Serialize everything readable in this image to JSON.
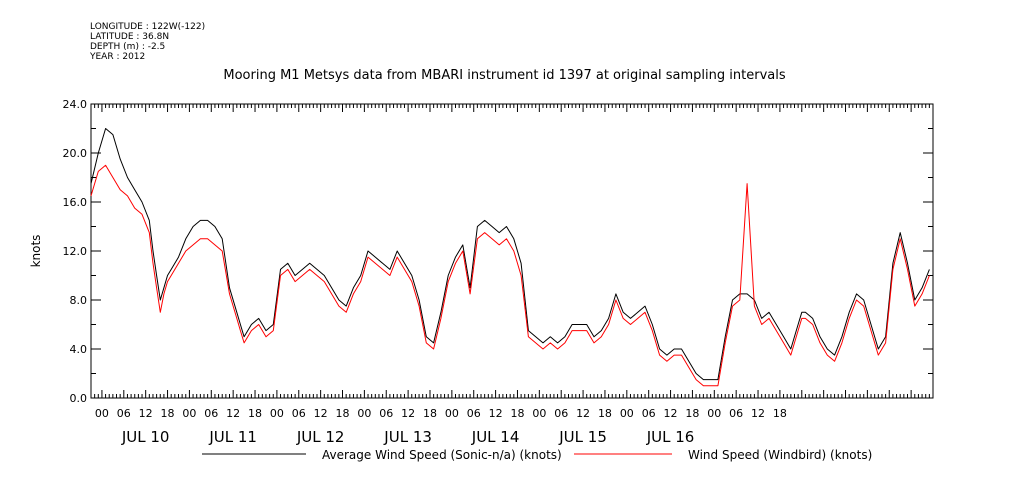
{
  "metadata": {
    "longitude": "LONGITUDE : 122W(-122)",
    "latitude": "LATITUDE : 36.8N",
    "depth": "DEPTH (m) : -2.5",
    "year": "YEAR : 2012"
  },
  "chart_data": {
    "type": "line",
    "title": "Mooring M1 Metsys data from MBARI instrument id 1397 at original sampling intervals",
    "ylabel": "knots",
    "xlabel": "",
    "ylim": [
      0,
      24
    ],
    "yticks": [
      "0.0",
      "4.0",
      "8.0",
      "12.0",
      "16.0",
      "20.0",
      "24.0"
    ],
    "xlim_hours_from_jul10_00": [
      -3,
      228
    ],
    "hour_tick_labels": [
      "00",
      "06",
      "12",
      "18",
      "00",
      "06",
      "12",
      "18",
      "00",
      "06",
      "12",
      "18",
      "00",
      "06",
      "12",
      "18",
      "00",
      "06",
      "12",
      "18",
      "00",
      "06",
      "12",
      "18",
      "00",
      "06",
      "12",
      "18",
      "00",
      "06",
      "12",
      "18"
    ],
    "day_labels": [
      "JUL 10",
      "JUL 11",
      "JUL 12",
      "JUL 13",
      "JUL 14",
      "JUL 15",
      "JUL 16"
    ],
    "grid": false,
    "legend_position": "bottom",
    "colors": {
      "sonic": "#000000",
      "windbird": "#ff0000"
    },
    "series": [
      {
        "name": "Average Wind Speed (Sonic-n/a) (knots)",
        "x": [
          -3,
          -1,
          1,
          3,
          5,
          7,
          9,
          11,
          13,
          14,
          15,
          16,
          17,
          18,
          19,
          21,
          23,
          25,
          27,
          29,
          31,
          33,
          35,
          37,
          38,
          39,
          41,
          43,
          45,
          47,
          49,
          51,
          53,
          55,
          57,
          59,
          61,
          63,
          65,
          67,
          69,
          71,
          73,
          75,
          77,
          79,
          81,
          83,
          85,
          87,
          89,
          91,
          93,
          95,
          97,
          99,
          101,
          103,
          105,
          107,
          109,
          111,
          113,
          115,
          117,
          119,
          121,
          123,
          125,
          127,
          129,
          131,
          133,
          135,
          137,
          139,
          141,
          143,
          145,
          147,
          149,
          151,
          153,
          155,
          157,
          159,
          161,
          163,
          165,
          167,
          169,
          171,
          173,
          175,
          177,
          179,
          181,
          183,
          185,
          187,
          189,
          191,
          192,
          193,
          195,
          197,
          199,
          201,
          203,
          205,
          207,
          209,
          211,
          213,
          215,
          217,
          219,
          221,
          223,
          225,
          227
        ],
        "values": [
          17.5,
          20,
          22,
          21.5,
          19.5,
          18,
          17,
          16,
          14.5,
          12,
          10,
          8,
          9,
          10,
          10.5,
          11.5,
          13,
          14,
          14.5,
          14.5,
          14,
          13,
          9,
          7,
          6,
          5,
          6,
          6.5,
          5.5,
          6,
          10.5,
          11,
          10,
          10.5,
          11,
          10.5,
          10,
          9,
          8,
          7.5,
          9,
          10,
          12,
          11.5,
          11,
          10.5,
          12,
          11,
          10,
          8,
          5,
          4.5,
          7,
          10,
          11.5,
          12.5,
          9,
          14,
          14.5,
          14,
          13.5,
          14,
          13,
          11,
          5.5,
          5,
          4.5,
          5,
          4.5,
          5,
          6,
          6,
          6,
          5,
          5.5,
          6.5,
          8.5,
          7,
          6.5,
          7,
          7.5,
          6,
          4,
          3.5,
          4,
          4,
          3,
          2,
          1.5,
          1.5,
          1.5,
          5,
          8,
          8.5,
          8.5,
          8,
          6.5,
          7,
          6,
          5,
          4,
          6,
          7,
          7,
          6.5,
          5,
          4,
          3.5,
          5,
          7,
          8.5,
          8,
          6,
          4,
          5,
          11,
          13.5,
          11,
          8,
          9,
          10.5
        ]
      },
      {
        "name": "Wind Speed (Windbird) (knots)",
        "x": [
          -3,
          -1,
          1,
          3,
          5,
          7,
          9,
          11,
          13,
          14,
          15,
          16,
          17,
          18,
          19,
          21,
          23,
          25,
          27,
          29,
          31,
          33,
          35,
          37,
          38,
          39,
          41,
          43,
          45,
          47,
          49,
          51,
          53,
          55,
          57,
          59,
          61,
          63,
          65,
          67,
          69,
          71,
          73,
          75,
          77,
          79,
          81,
          83,
          85,
          87,
          89,
          91,
          93,
          95,
          97,
          99,
          101,
          103,
          105,
          107,
          109,
          111,
          113,
          115,
          117,
          119,
          121,
          123,
          125,
          127,
          129,
          131,
          133,
          135,
          137,
          139,
          141,
          143,
          145,
          147,
          149,
          151,
          153,
          155,
          157,
          159,
          161,
          163,
          165,
          167,
          169,
          171,
          173,
          175,
          177,
          179,
          181,
          183,
          185,
          187,
          189,
          191,
          192,
          193,
          195,
          197,
          199,
          201,
          203,
          205,
          207,
          209,
          211,
          213,
          215,
          217,
          219,
          221,
          223,
          225,
          227
        ],
        "values": [
          16.5,
          18.5,
          19,
          18,
          17,
          16.5,
          15.5,
          15,
          13.5,
          11,
          9,
          7,
          8.5,
          9.5,
          10,
          11,
          12,
          12.5,
          13,
          13,
          12.5,
          12,
          8.5,
          6.5,
          5.5,
          4.5,
          5.5,
          6,
          5,
          5.5,
          10,
          10.5,
          9.5,
          10,
          10.5,
          10,
          9.5,
          8.5,
          7.5,
          7,
          8.5,
          9.5,
          11.5,
          11,
          10.5,
          10,
          11.5,
          10.5,
          9.5,
          7.5,
          4.5,
          4,
          6.5,
          9.5,
          11,
          12,
          8.5,
          13,
          13.5,
          13,
          12.5,
          13,
          12,
          10,
          5,
          4.5,
          4,
          4.5,
          4,
          4.5,
          5.5,
          5.5,
          5.5,
          4.5,
          5,
          6,
          8,
          6.5,
          6,
          6.5,
          7,
          5.5,
          3.5,
          3,
          3.5,
          3.5,
          2.5,
          1.5,
          1,
          1,
          1,
          4.5,
          7.5,
          8,
          17.5,
          7.5,
          6,
          6.5,
          5.5,
          4.5,
          3.5,
          5.5,
          6.5,
          6.5,
          6,
          4.5,
          3.5,
          3,
          4.5,
          6.5,
          8,
          7.5,
          5.5,
          3.5,
          4.5,
          10.5,
          13,
          10.5,
          7.5,
          8.5,
          10
        ]
      }
    ]
  }
}
